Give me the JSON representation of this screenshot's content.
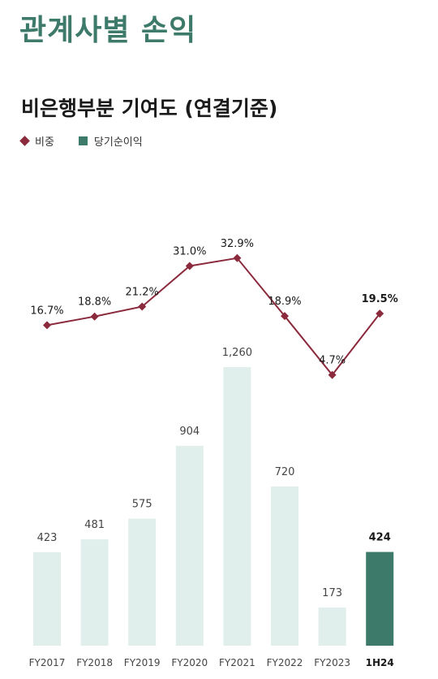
{
  "page_title": "관계사별 손익",
  "chart_title": "비은행부분 기여도 (연결기준)",
  "legend": {
    "ratio_label": "비중",
    "profit_label": "당기순이익"
  },
  "colors": {
    "title": "#3d7a6a",
    "line": "#8b2a3c",
    "bar": "#e1efec",
    "bar_highlight": "#3d7a6a"
  },
  "chart_data": {
    "type": "bar",
    "categories": [
      "FY2017",
      "FY2018",
      "FY2019",
      "FY2020",
      "FY2021",
      "FY2022",
      "FY2023",
      "1H24"
    ],
    "series": [
      {
        "name": "당기순이익",
        "type": "bar",
        "values": [
          423,
          481,
          575,
          904,
          1260,
          720,
          173,
          424
        ],
        "labels": [
          "423",
          "481",
          "575",
          "904",
          "1,260",
          "720",
          "173",
          "424"
        ]
      },
      {
        "name": "비중",
        "type": "line",
        "values": [
          16.7,
          18.8,
          21.2,
          31.0,
          32.9,
          18.9,
          4.7,
          19.5
        ],
        "labels": [
          "16.7%",
          "18.8%",
          "21.2%",
          "31.0%",
          "32.9%",
          "18.9%",
          "4.7%",
          "19.5%"
        ]
      }
    ],
    "highlight_category": "1H24"
  }
}
